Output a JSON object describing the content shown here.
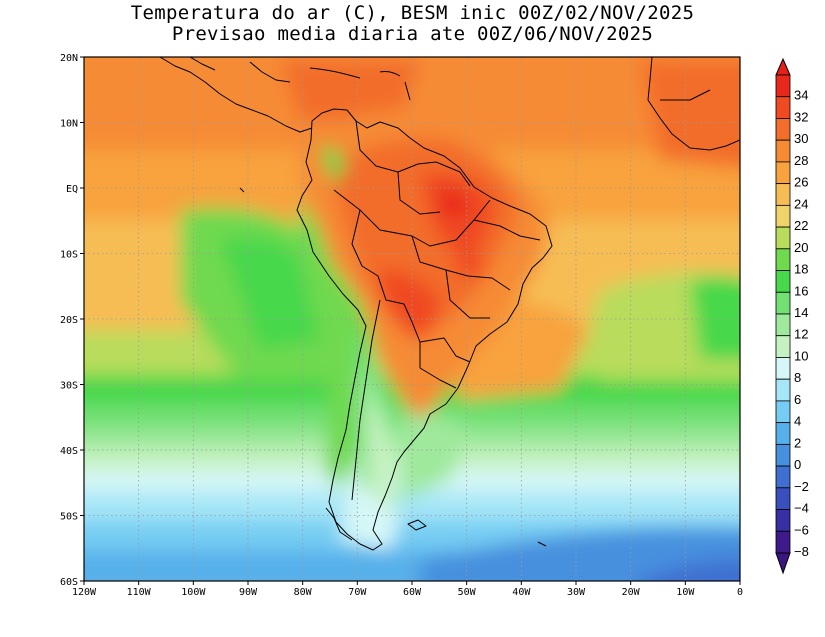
{
  "title_line1": "Temperatura do ar (C), BESM inic 00Z/02/NOV/2025",
  "title_line2": "Previsao media diaria ate 00Z/06/NOV/2025",
  "lon_labels": [
    "120W",
    "110W",
    "100W",
    "90W",
    "80W",
    "70W",
    "60W",
    "50W",
    "40W",
    "30W",
    "20W",
    "10W",
    "0"
  ],
  "lat_labels": [
    "20N",
    "10N",
    "EQ",
    "10S",
    "20S",
    "30S",
    "40S",
    "50S",
    "60S"
  ],
  "lon_range": [
    -120,
    0
  ],
  "lat_range": [
    -60,
    20
  ],
  "colorbar": {
    "values": [
      34,
      32,
      30,
      28,
      26,
      24,
      22,
      20,
      18,
      16,
      14,
      12,
      10,
      8,
      6,
      4,
      2,
      0,
      -2,
      -4,
      -6,
      -8
    ],
    "colors": [
      "#e8281a",
      "#f04a22",
      "#f36d2b",
      "#f68b34",
      "#f8a33d",
      "#f7bd55",
      "#f1d36b",
      "#b9dc5c",
      "#6fd94f",
      "#47d84c",
      "#72e073",
      "#9fe99c",
      "#c6f2c2",
      "#d6f7f7",
      "#a6e6f7",
      "#76cdf3",
      "#56b0ea",
      "#4690de",
      "#3f6fd1",
      "#3a4fbe",
      "#3730a5",
      "#3e1a8a"
    ],
    "over_color": "#e62018",
    "under_color": "#3a1580"
  }
}
